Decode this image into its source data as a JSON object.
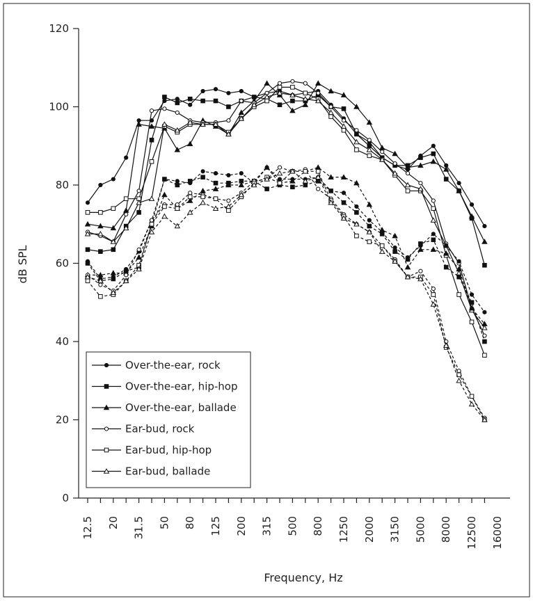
{
  "chart_data": {
    "type": "line",
    "xlabel": "Frequency, Hz",
    "ylabel": "dB SPL",
    "ylim": [
      0,
      120
    ],
    "yticks": [
      0,
      20,
      40,
      60,
      80,
      100,
      120
    ],
    "x_tick_labels": [
      "12.5",
      "20",
      "31.5",
      "50",
      "80",
      "125",
      "200",
      "315",
      "500",
      "800",
      "1250",
      "2000",
      "3150",
      "5000",
      "8000",
      "12500",
      "16000"
    ],
    "legend_position": "bottom-left",
    "x_points": [
      "12.5",
      "16",
      "20",
      "25",
      "31.5",
      "40",
      "50",
      "63",
      "80",
      "100",
      "125",
      "160",
      "200",
      "250",
      "315",
      "400",
      "500",
      "630",
      "800",
      "1000",
      "1250",
      "1600",
      "2000",
      "2500",
      "3150",
      "4000",
      "5000",
      "6300",
      "8000",
      "10000",
      "12500",
      "16000"
    ],
    "series": [
      {
        "name": "Over-the-ear, rock",
        "line": "solid",
        "marker": "circle-filled",
        "values": [
          75.5,
          80,
          81.5,
          87,
          96.5,
          96.5,
          101.5,
          102,
          100.5,
          104,
          104.5,
          103.5,
          104,
          102.5,
          103.5,
          104,
          103,
          103.5,
          104,
          100.5,
          97,
          93,
          91,
          87,
          85,
          84,
          87.5,
          90,
          85,
          80.5,
          75,
          69.5
        ]
      },
      {
        "name": "Over-the-ear, hip-hop",
        "line": "solid",
        "marker": "square-filled",
        "values": [
          63.5,
          63,
          63.5,
          69.5,
          73,
          91.5,
          102.5,
          101,
          102,
          101.5,
          101.5,
          100,
          101.5,
          102.5,
          102,
          100.5,
          101.5,
          101.5,
          103,
          100,
          99.5,
          93,
          90,
          87,
          85,
          85,
          87,
          88,
          81.5,
          78.5,
          71.5,
          59.5
        ]
      },
      {
        "name": "Over-the-ear, ballade",
        "line": "solid",
        "marker": "triangle-filled",
        "values": [
          70,
          69.5,
          69,
          73.5,
          95.5,
          95,
          94.5,
          89,
          90.5,
          96.5,
          95,
          93,
          98.5,
          101.5,
          106,
          103,
          99,
          100.5,
          106,
          104,
          103,
          100,
          96,
          89.5,
          88,
          84.5,
          85,
          86,
          84,
          78.5,
          72,
          65.5
        ]
      },
      {
        "name": "Ear-bud, rock",
        "line": "solid",
        "marker": "circle-open",
        "values": [
          68,
          67,
          65.5,
          72.5,
          78.5,
          99,
          99.5,
          98.5,
          96.5,
          96,
          96,
          96.5,
          101.5,
          101,
          103.5,
          106,
          106.5,
          106,
          103.5,
          100,
          96.5,
          94,
          91.5,
          88.5,
          85.5,
          83,
          80.5,
          76,
          65,
          60,
          48.5,
          41.5
        ]
      },
      {
        "name": "Ear-bud, hip-hop",
        "line": "solid",
        "marker": "square-open",
        "values": [
          73,
          73,
          74,
          76.5,
          76.5,
          86,
          95,
          93.5,
          95.5,
          95.5,
          95.5,
          93.5,
          97,
          100,
          101.5,
          105,
          105,
          103.5,
          102,
          97.5,
          94,
          89,
          87.5,
          86.5,
          82.5,
          78.5,
          78.5,
          74,
          62,
          52,
          45,
          36.5
        ]
      },
      {
        "name": "Ear-bud, ballade",
        "line": "solid",
        "marker": "triangle-open",
        "values": [
          67.5,
          67.5,
          65.5,
          69,
          75.5,
          76.5,
          95.5,
          94,
          96,
          95.5,
          95.5,
          93,
          97,
          100.5,
          102.5,
          103.5,
          103,
          102,
          101.5,
          98.5,
          95,
          91,
          89,
          86.5,
          83,
          80,
          79,
          71,
          64.5,
          57.5,
          48,
          43.5
        ]
      },
      {
        "name": "",
        "line": "dashed",
        "marker": "circle-filled",
        "values": [
          60.5,
          56,
          56.5,
          58.5,
          63,
          71,
          81.5,
          81,
          80.5,
          83.5,
          83,
          82.5,
          83,
          80.5,
          84.5,
          81.5,
          81.5,
          81.5,
          82,
          78.5,
          78,
          74.5,
          71,
          68,
          64,
          61.5,
          64.5,
          67.5,
          64.5,
          60.5,
          52,
          47.5
        ]
      },
      {
        "name": "",
        "line": "dashed",
        "marker": "square-filled",
        "values": [
          60,
          55.5,
          56,
          58,
          59,
          70,
          81.5,
          80,
          81,
          82,
          80.5,
          80.5,
          81,
          81,
          79,
          80,
          79.5,
          80,
          81,
          78.5,
          75.5,
          73,
          69.5,
          67.5,
          63,
          61,
          65,
          66,
          59,
          56.5,
          50,
          40
        ]
      },
      {
        "name": "",
        "line": "dashed",
        "marker": "triangle-filled",
        "values": [
          57,
          57,
          57.5,
          57.5,
          61.5,
          69.5,
          77.5,
          74,
          76,
          78.5,
          79,
          80,
          80,
          81,
          84.5,
          80.5,
          81,
          83.5,
          84.5,
          82,
          82,
          80.5,
          75,
          68.5,
          67,
          59,
          63.5,
          63.5,
          62.5,
          58.5,
          48.5,
          44.5
        ]
      },
      {
        "name": "",
        "line": "dashed",
        "marker": "circle-open",
        "values": [
          57,
          54.5,
          53,
          57,
          63.5,
          71,
          75,
          75,
          78,
          77.5,
          76.5,
          76,
          78,
          81,
          81.5,
          84.5,
          83.5,
          84,
          79,
          76.5,
          72.5,
          70,
          68,
          64.5,
          61,
          56.5,
          58,
          53.5,
          40,
          32.5,
          26,
          20.5
        ]
      },
      {
        "name": "",
        "line": "dashed",
        "marker": "square-open",
        "values": [
          55.5,
          51.5,
          52,
          55.5,
          59.5,
          70,
          74.5,
          74,
          77,
          77,
          76.5,
          73.5,
          77,
          80.5,
          82,
          80.5,
          83.5,
          83.5,
          83.5,
          76,
          72,
          67,
          65.5,
          64.5,
          60.5,
          56.5,
          56.5,
          52,
          38.5,
          31.5,
          26,
          20
        ]
      },
      {
        "name": "",
        "line": "dashed",
        "marker": "triangle-open",
        "values": [
          56.5,
          55.5,
          52.5,
          55.5,
          58.5,
          68,
          72,
          69.5,
          73,
          75.5,
          74,
          74.5,
          77.5,
          80,
          81.5,
          83,
          83.5,
          81,
          82,
          75.5,
          71.5,
          70,
          68,
          63,
          60.5,
          56.5,
          56,
          49.5,
          39,
          30,
          24,
          20
        ]
      }
    ]
  }
}
